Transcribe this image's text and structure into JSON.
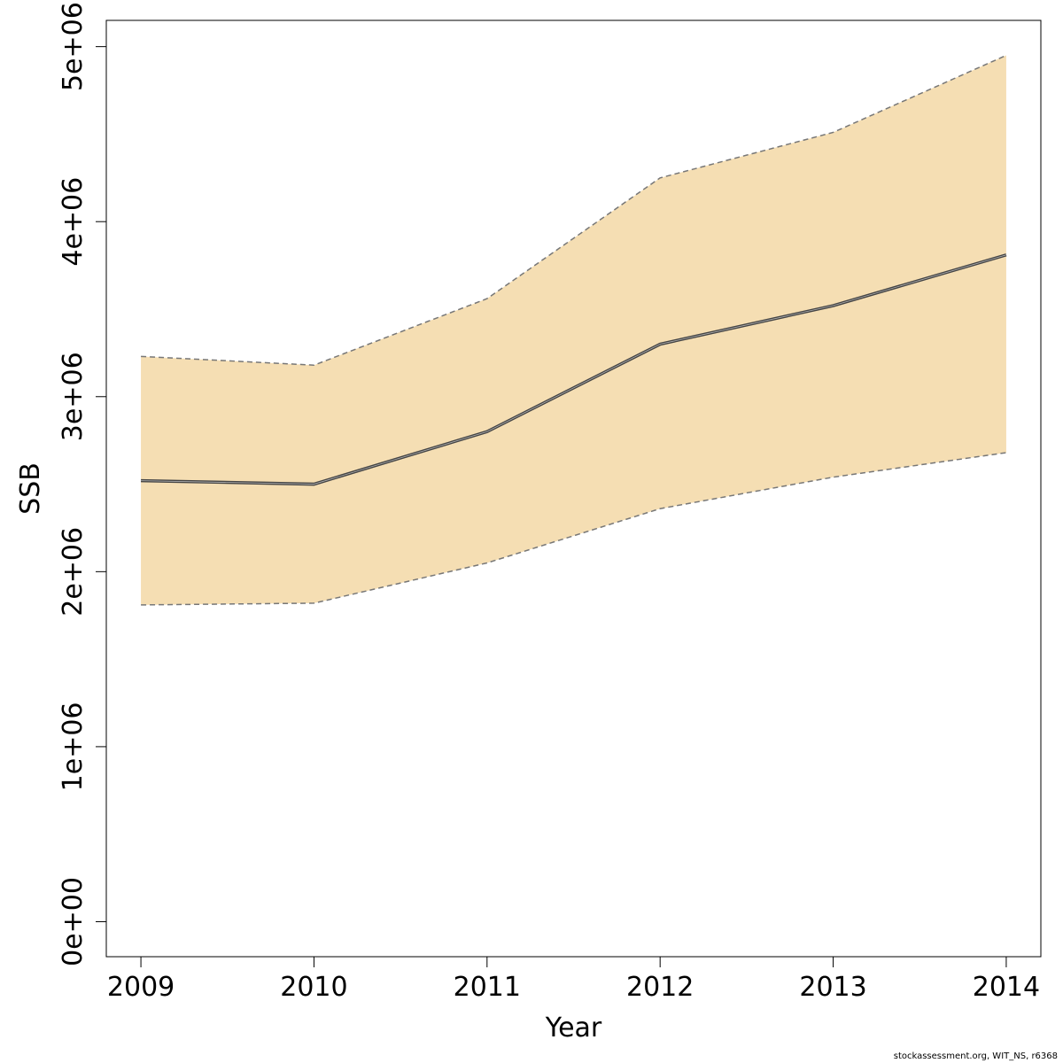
{
  "chart_data": {
    "type": "area",
    "x": [
      2009,
      2010,
      2011,
      2012,
      2013,
      2014
    ],
    "series": [
      {
        "role": "estimate",
        "values": [
          2520000,
          2500000,
          2800000,
          3300000,
          3520000,
          3810000
        ]
      },
      {
        "role": "upper",
        "values": [
          3230000,
          3180000,
          3560000,
          4250000,
          4510000,
          4950000
        ]
      },
      {
        "role": "lower",
        "values": [
          1810000,
          1820000,
          2050000,
          2360000,
          2540000,
          2680000
        ]
      }
    ],
    "xlabel": "Year",
    "ylabel": "SSB",
    "x_ticks": [
      "2009",
      "2010",
      "2011",
      "2012",
      "2013",
      "2014"
    ],
    "y_ticks": [
      {
        "value": 0,
        "label": "0e+00"
      },
      {
        "value": 1000000,
        "label": "1e+06"
      },
      {
        "value": 2000000,
        "label": "2e+06"
      },
      {
        "value": 3000000,
        "label": "3e+06"
      },
      {
        "value": 4000000,
        "label": "4e+06"
      },
      {
        "value": 5000000,
        "label": "5e+06"
      }
    ],
    "xlim": [
      2008.8,
      2014.2
    ],
    "ylim": [
      -200000,
      5150000
    ],
    "grid": false,
    "colors": {
      "band": "#f5deb3",
      "line": "#444444",
      "bound": "#777777"
    }
  },
  "footer": "stockassessment.org, WIT_NS, r6368"
}
